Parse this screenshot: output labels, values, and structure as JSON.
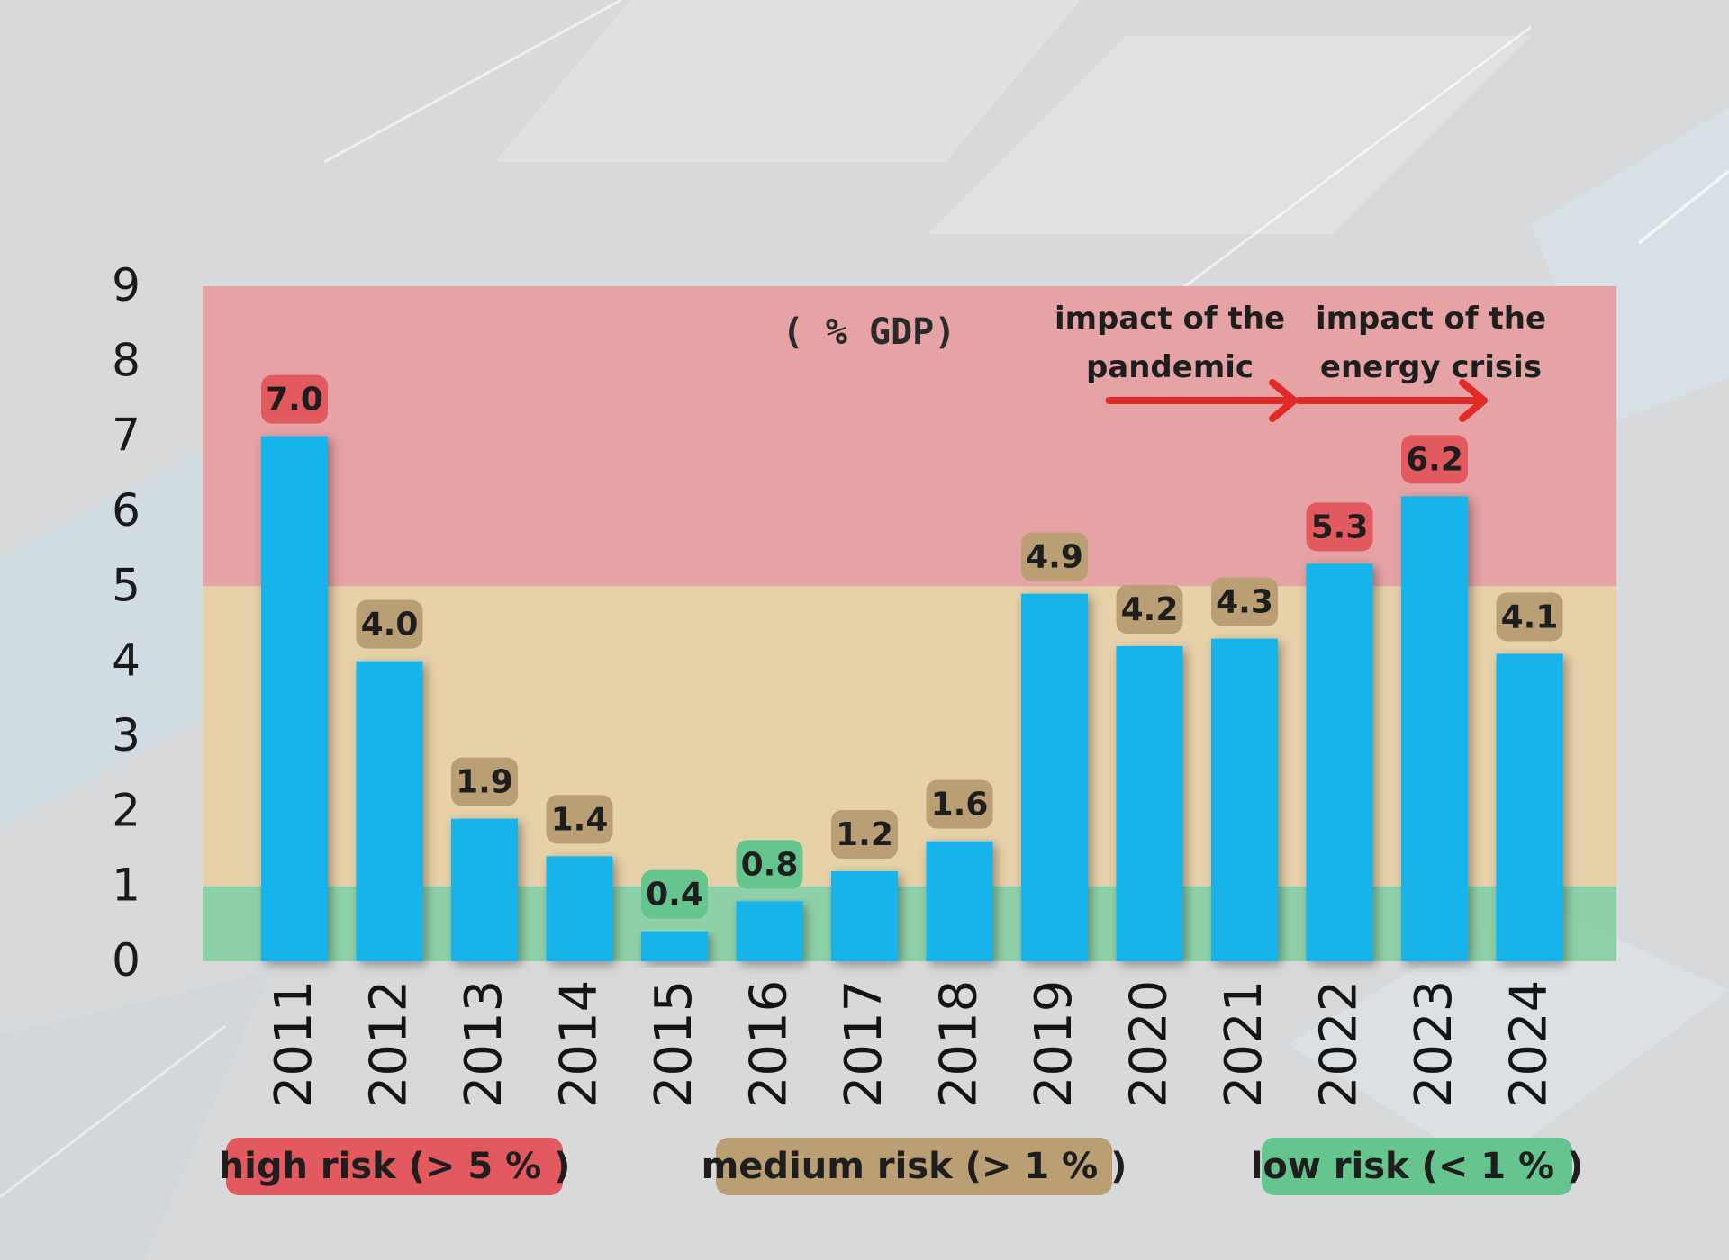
{
  "chart_data": {
    "type": "bar",
    "title": "( % GDP)",
    "categories": [
      "2011",
      "2012",
      "2013",
      "2014",
      "2015",
      "2016",
      "2017",
      "2018",
      "2019",
      "2020",
      "2021",
      "2022",
      "2023",
      "2024"
    ],
    "values": [
      7.0,
      4.0,
      1.9,
      1.4,
      0.4,
      0.8,
      1.2,
      1.6,
      4.9,
      4.2,
      4.3,
      5.3,
      6.2,
      4.1
    ],
    "value_labels": [
      "7.0",
      "4.0",
      "1.9",
      "1.4",
      "0.4",
      "0.8",
      "1.2",
      "1.6",
      "4.9",
      "4.2",
      "4.3",
      "5.3",
      "6.2",
      "4.1"
    ],
    "yticks": [
      "0",
      "1",
      "2",
      "3",
      "4",
      "5",
      "6",
      "7",
      "8",
      "9"
    ],
    "ylim": [
      0,
      9
    ],
    "xlabel": "",
    "ylabel": "",
    "risk_bands": [
      {
        "name": "low",
        "from": 0,
        "to": 1,
        "color": "#86cfa3"
      },
      {
        "name": "medium",
        "from": 1,
        "to": 5,
        "color": "#e8cfa3"
      },
      {
        "name": "high",
        "from": 5,
        "to": 9,
        "color": "#e79c9f"
      }
    ],
    "annotations": [
      {
        "lines": [
          "impact of the",
          "pandemic"
        ],
        "arrow_from_year": "2020",
        "arrow_to_year": "2021"
      },
      {
        "lines": [
          "impact of the",
          "energy crisis"
        ],
        "arrow_from_year": "2022",
        "arrow_to_year": "2023"
      }
    ],
    "legend": [
      {
        "label": "high risk (> 5 % )",
        "color": "#e2595f"
      },
      {
        "label": "medium risk (> 1 % )",
        "color": "#b99f73"
      },
      {
        "label": "low risk (< 1 % )",
        "color": "#66c48e"
      }
    ],
    "colors": {
      "bar": "#14b4ea",
      "label_high": "#e2595f",
      "label_medium": "#b99f73",
      "label_low": "#66c48e",
      "arrow": "#e22b28"
    }
  }
}
